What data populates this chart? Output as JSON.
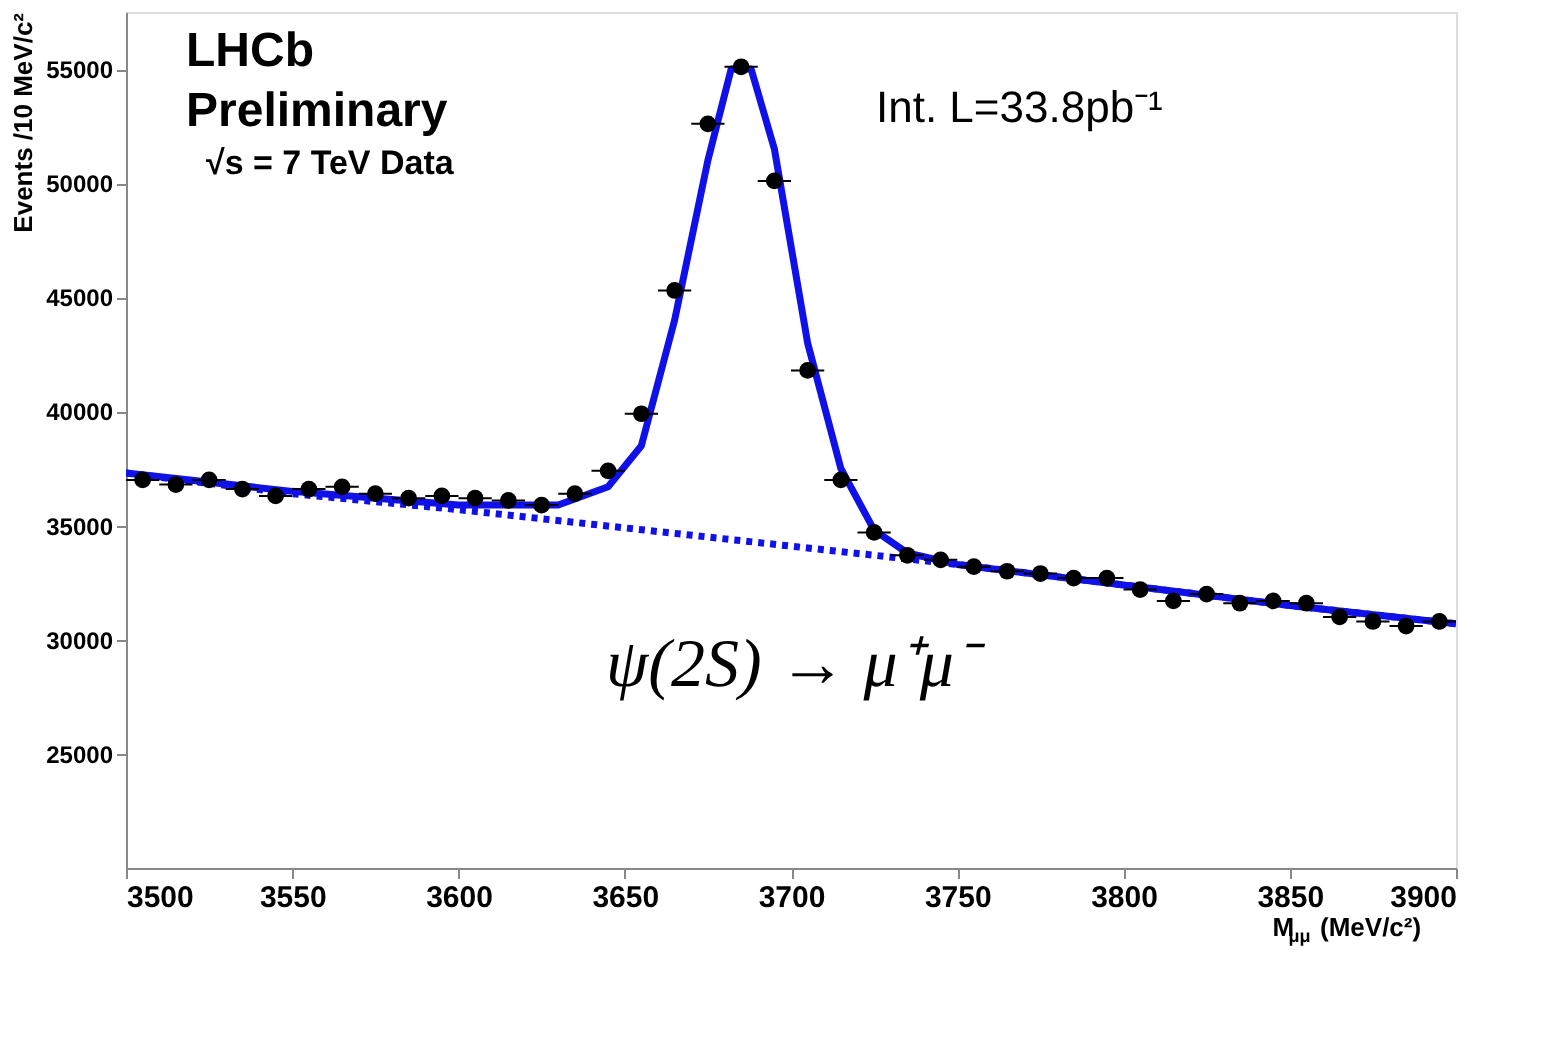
{
  "chart_data": {
    "type": "scatter",
    "xlabel": "M$_{μμ}$ (MeV/c²)",
    "ylabel": "Events /10 MeV/c²",
    "xlim": [
      3500,
      3900
    ],
    "xticks": [
      3500,
      3550,
      3600,
      3650,
      3700,
      3750,
      3800,
      3850,
      3900
    ],
    "ylim": [
      20000,
      57500
    ],
    "yticks": [
      25000,
      30000,
      35000,
      40000,
      45000,
      50000,
      55000
    ],
    "grid": false,
    "annotations": [
      "LHCb",
      "Preliminary",
      "√s = 7 TeV Data",
      "Int. L=33.8pb⁻¹",
      "ψ(2S) → μ⁺μ⁻"
    ],
    "series": [
      {
        "type": "line",
        "color": "#1010e8",
        "line_style": "dotted",
        "x": [
          3500,
          3550,
          3600,
          3650,
          3700,
          3750,
          3800,
          3850,
          3900
        ],
        "values": [
          37300,
          36400,
          35700,
          34900,
          34100,
          33300,
          32400,
          31500,
          30700
        ]
      },
      {
        "type": "line",
        "color": "#1010e8",
        "line_style": "solid",
        "x": [
          3500,
          3550,
          3600,
          3630,
          3645,
          3655,
          3665,
          3675,
          3682,
          3688,
          3695,
          3705,
          3715,
          3725,
          3735,
          3750,
          3800,
          3850,
          3900
        ],
        "values": [
          37300,
          36500,
          35900,
          35900,
          36700,
          38500,
          44000,
          51000,
          55000,
          55000,
          51500,
          43000,
          37500,
          34800,
          33800,
          33300,
          32400,
          31500,
          30700
        ]
      },
      {
        "color": "#000000",
        "marker": "circle",
        "x": [
          3505,
          3515,
          3525,
          3535,
          3545,
          3555,
          3565,
          3575,
          3585,
          3595,
          3605,
          3615,
          3625,
          3635,
          3645,
          3655,
          3665,
          3675,
          3685,
          3695,
          3705,
          3715,
          3725,
          3735,
          3745,
          3755,
          3765,
          3775,
          3785,
          3795,
          3805,
          3815,
          3825,
          3835,
          3845,
          3855,
          3865,
          3875,
          3885,
          3895
        ],
        "values": [
          37000,
          36800,
          37000,
          36600,
          36300,
          36600,
          36700,
          36400,
          36200,
          36300,
          36200,
          36100,
          35900,
          36400,
          37400,
          39900,
          45300,
          52600,
          55100,
          50100,
          41800,
          37000,
          34700,
          33700,
          33500,
          33200,
          33000,
          32900,
          32700,
          32700,
          32200,
          31700,
          32000,
          31600,
          31700,
          31600,
          31000,
          30800,
          30600,
          30800
        ],
        "xerrors": [
          5,
          5,
          5,
          5,
          5,
          5,
          5,
          5,
          5,
          5,
          5,
          5,
          5,
          5,
          5,
          5,
          5,
          5,
          5,
          5,
          5,
          5,
          5,
          5,
          5,
          5,
          5,
          5,
          5,
          5,
          5,
          5,
          5,
          5,
          5,
          5,
          5,
          5,
          5,
          5
        ]
      }
    ]
  }
}
